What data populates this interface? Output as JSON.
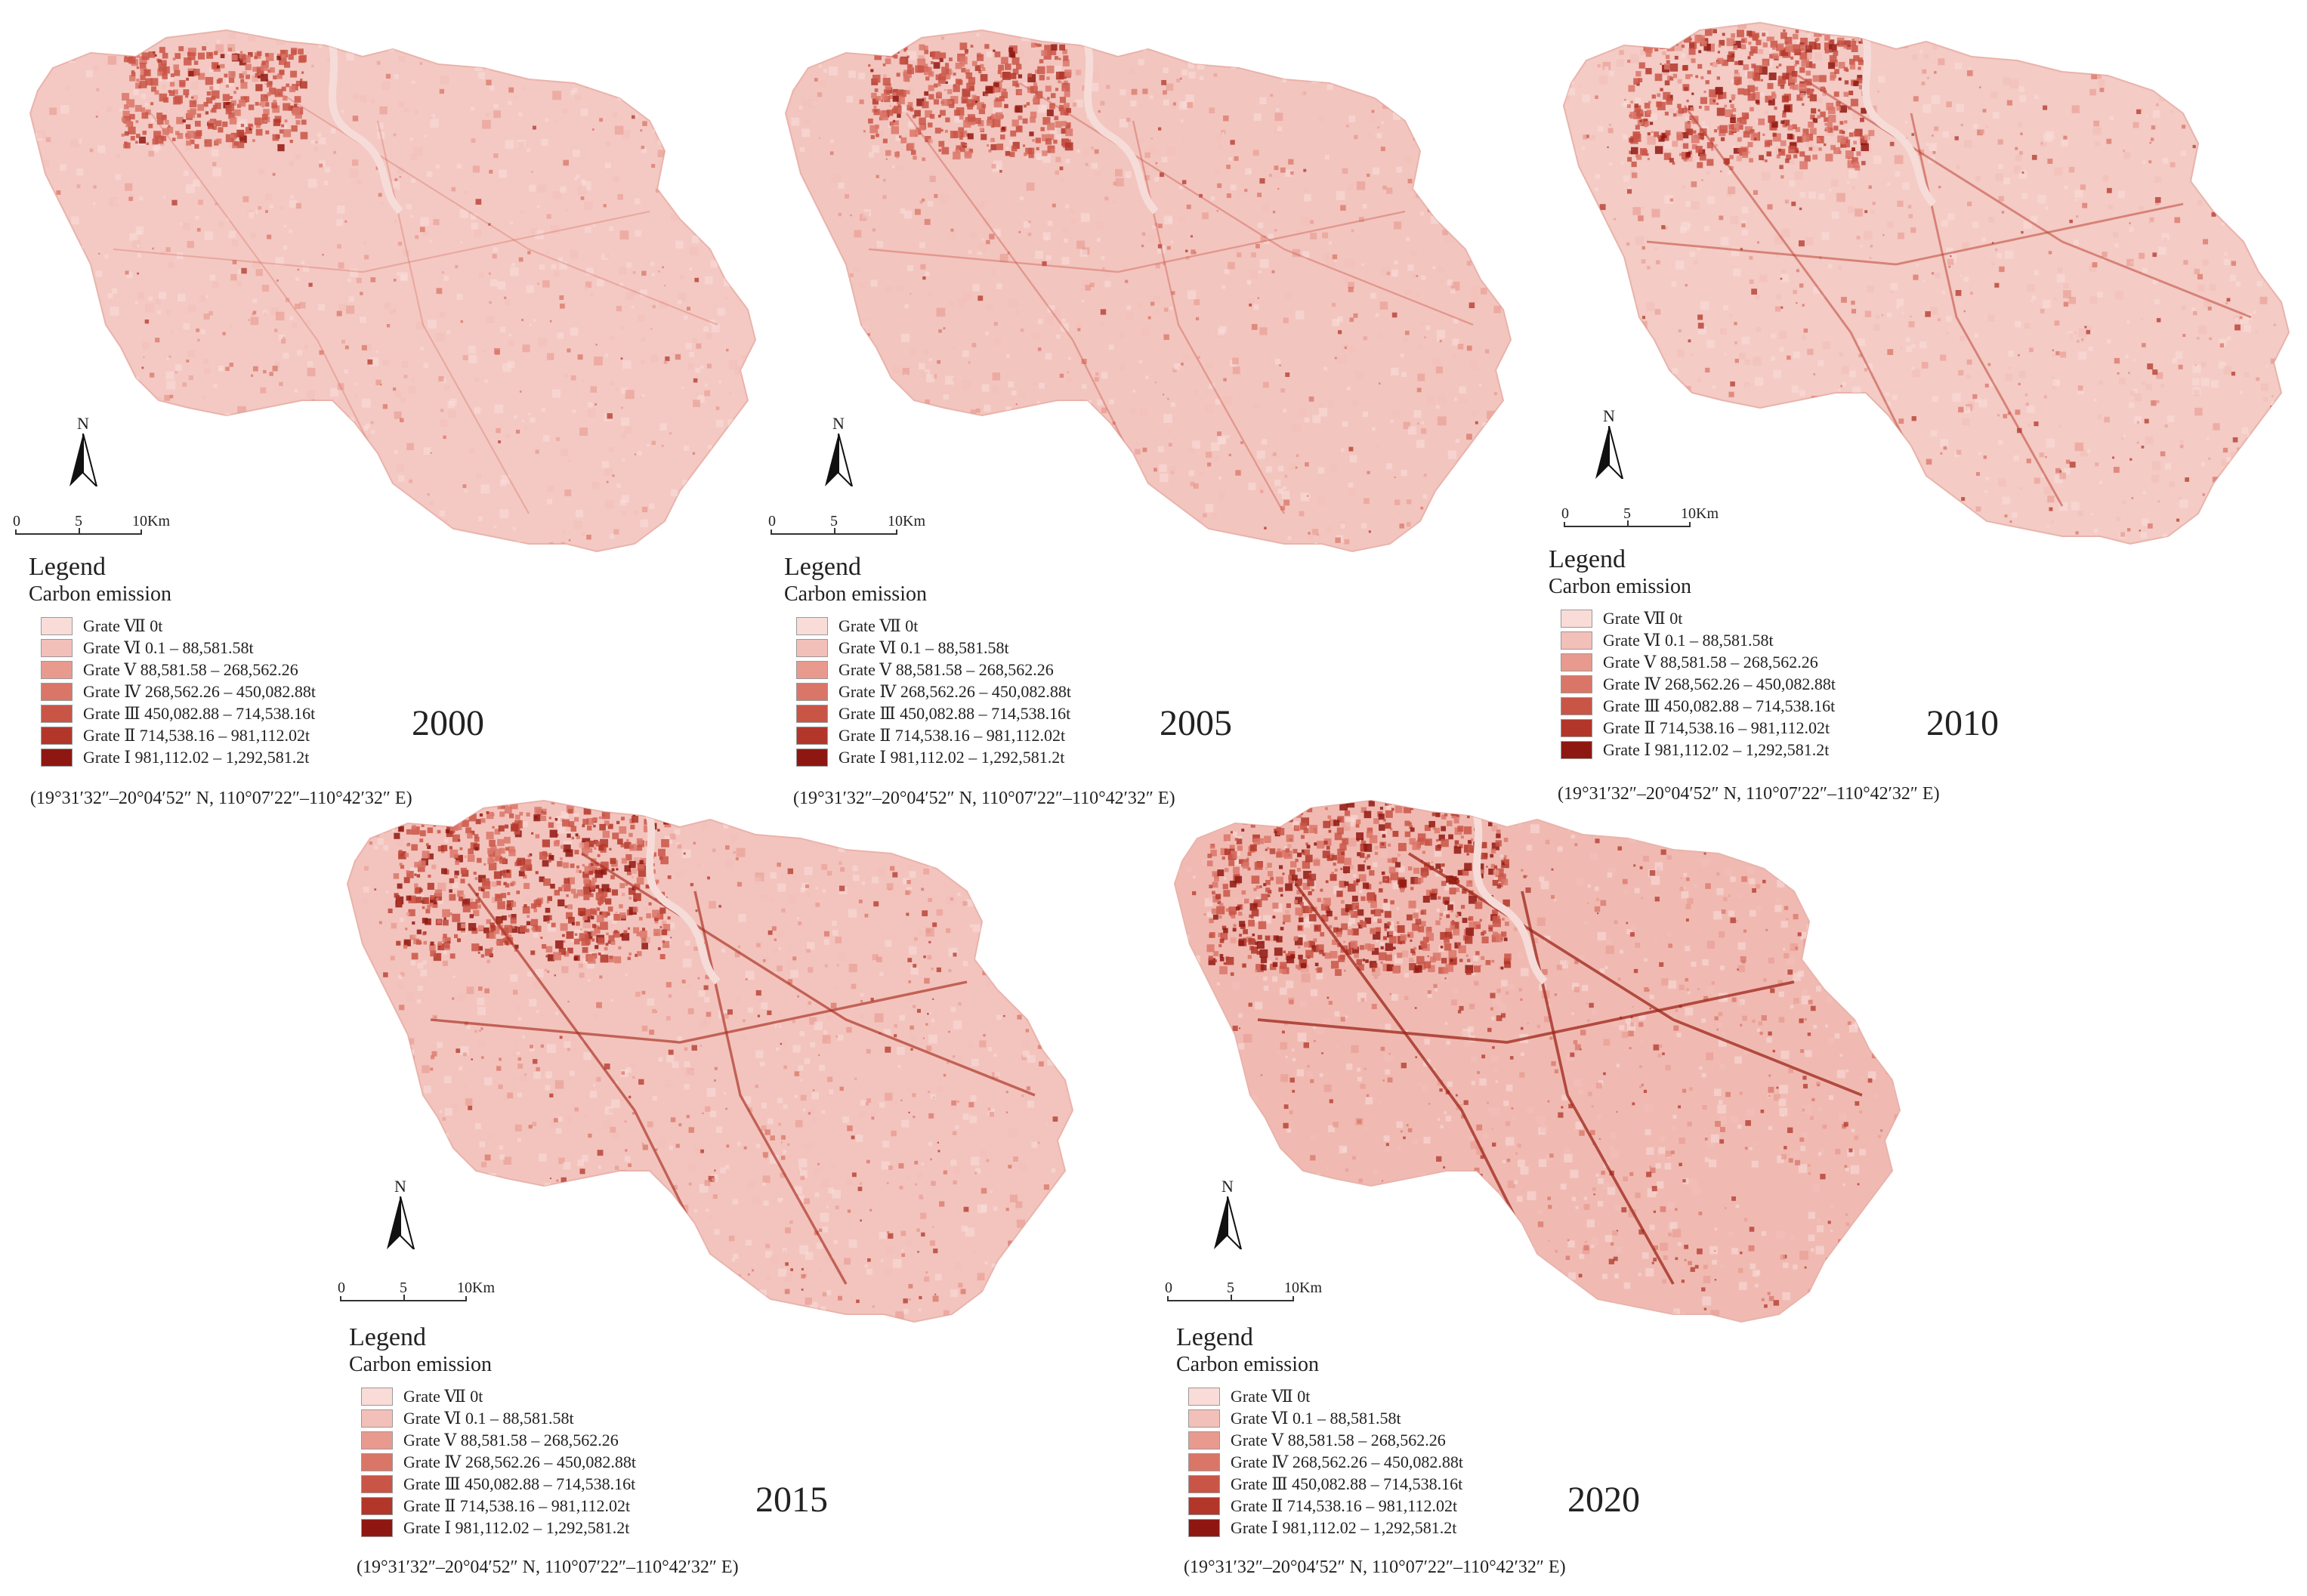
{
  "figure": {
    "legend_title": "Legend",
    "legend_subtitle": "Carbon emission",
    "coordinates": "(19°31′32″–20°04′52″ N, 110°07′22″–110°42′32″ E)",
    "north_label": "N",
    "scale": {
      "ticks": [
        "0",
        "5",
        "10Km"
      ]
    },
    "classes": [
      {
        "label": "Grate Ⅶ 0t",
        "color": "#f9dcd8"
      },
      {
        "label": "Grate Ⅵ 0.1 – 88,581.58t",
        "color": "#f2c0b9"
      },
      {
        "label": "Grate Ⅴ 88,581.58 – 268,562.26",
        "color": "#e89a8f"
      },
      {
        "label": "Grate Ⅳ 268,562.26 – 450,082.88t",
        "color": "#da7668"
      },
      {
        "label": "Grate Ⅲ 450,082.88 – 714,538.16t",
        "color": "#c95547"
      },
      {
        "label": "Grate Ⅱ 714,538.16 – 981,112.02t",
        "color": "#b23629"
      },
      {
        "label": "Grate Ⅰ 981,112.02 – 1,292,581.2t",
        "color": "#8f1711"
      }
    ]
  },
  "panels": [
    {
      "year": "2000",
      "urban_intensity": 0.25,
      "base_color": "#f4c9c3",
      "urban_color": "#d46a5e"
    },
    {
      "year": "2005",
      "urban_intensity": 0.35,
      "base_color": "#f3c5bf",
      "urban_color": "#c9584b"
    },
    {
      "year": "2010",
      "urban_intensity": 0.55,
      "base_color": "#f4cbc5",
      "urban_color": "#bb4032"
    },
    {
      "year": "2015",
      "urban_intensity": 0.75,
      "base_color": "#f3c4bd",
      "urban_color": "#a82c1f"
    },
    {
      "year": "2020",
      "urban_intensity": 0.9,
      "base_color": "#f0bab2",
      "urban_color": "#9d2317"
    }
  ]
}
